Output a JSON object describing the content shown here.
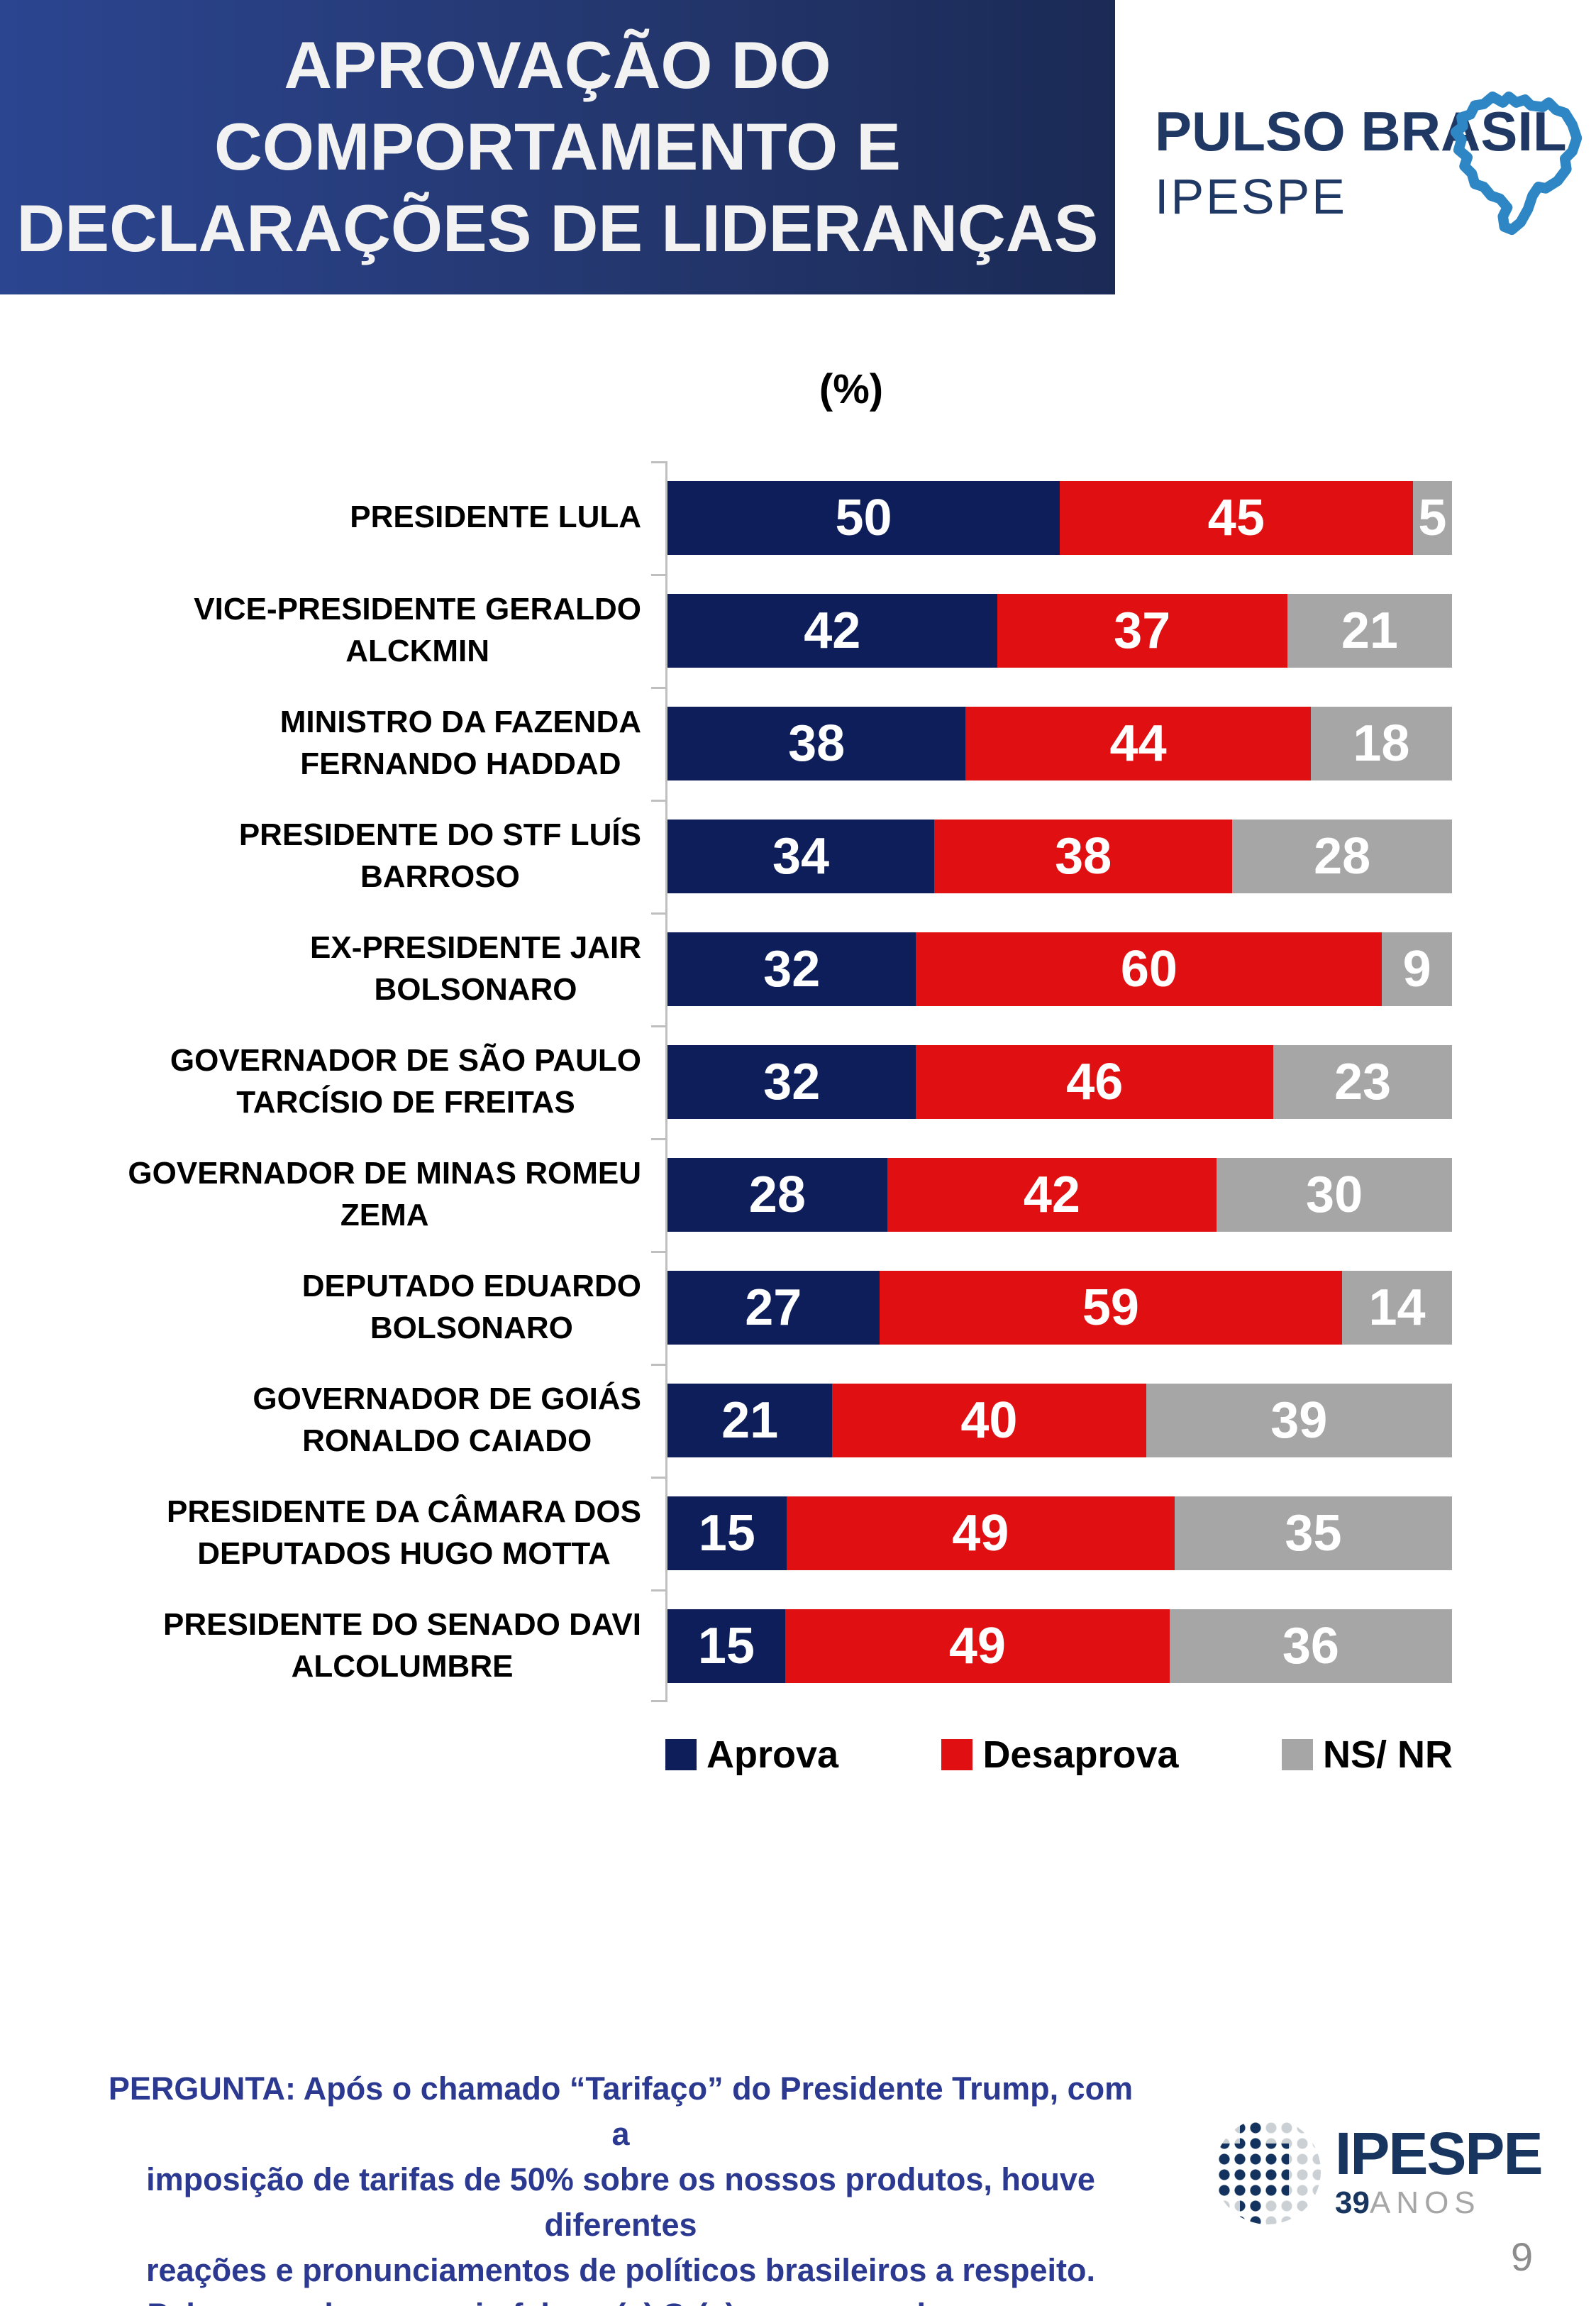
{
  "header": {
    "title": "APROVAÇÃO DO\nCOMPORTAMENTO E\nDECLARAÇÕES DE LIDERANÇAS",
    "brand": {
      "line1": "PULSO BRASIL",
      "line2": "IPESPE"
    }
  },
  "chart_data": {
    "type": "bar",
    "orientation": "horizontal",
    "stacked": true,
    "unit_label": "(%)",
    "xlim": [
      0,
      100
    ],
    "grid": false,
    "legend_position": "bottom",
    "legend": [
      "Aprova",
      "Desaprova",
      "NS/ NR"
    ],
    "colors": {
      "aprova": "#0D1E5A",
      "desaprova": "#E01012",
      "nsnr": "#A6A6A6"
    },
    "categories": [
      "PRESIDENTE LULA",
      "VICE-PRESIDENTE GERALDO\nALCKMIN",
      "MINISTRO DA FAZENDA\nFERNANDO HADDAD",
      "PRESIDENTE DO STF LUÍS\nBARROSO",
      "EX-PRESIDENTE JAIR\nBOLSONARO",
      "GOVERNADOR DE SÃO PAULO\nTARCÍSIO DE FREITAS",
      "GOVERNADOR DE MINAS ROMEU\nZEMA",
      "DEPUTADO EDUARDO\nBOLSONARO",
      "GOVERNADOR DE GOIÁS\nRONALDO CAIADO",
      "PRESIDENTE DA CÂMARA DOS\nDEPUTADOS HUGO MOTTA",
      "PRESIDENTE DO SENADO DAVI\nALCOLUMBRE"
    ],
    "series": [
      {
        "name": "Aprova",
        "values": [
          50,
          42,
          38,
          34,
          32,
          32,
          28,
          27,
          21,
          15,
          15
        ]
      },
      {
        "name": "Desaprova",
        "values": [
          45,
          37,
          44,
          38,
          60,
          46,
          42,
          59,
          40,
          49,
          49
        ]
      },
      {
        "name": "NS/ NR",
        "values": [
          5,
          21,
          18,
          28,
          9,
          23,
          30,
          14,
          39,
          35,
          36
        ]
      }
    ]
  },
  "footer": {
    "question": "PERGUNTA: Após o chamado “Tarifaço” do Presidente Trump, com a\nimposição de tarifas de 50% sobre os nossos produtos, houve diferentes\nreações e pronunciamentos de políticos brasileiros a respeito.\nPelo que sabe ou ouviu falar, o(a) Sr(a) aprova ou desaprova o\ncomportamento e as declarações até o momento de:",
    "ipespe": {
      "word": "IPESPE",
      "years_bold": "39",
      "years_rest": "ANOS"
    },
    "page_number": "9"
  }
}
